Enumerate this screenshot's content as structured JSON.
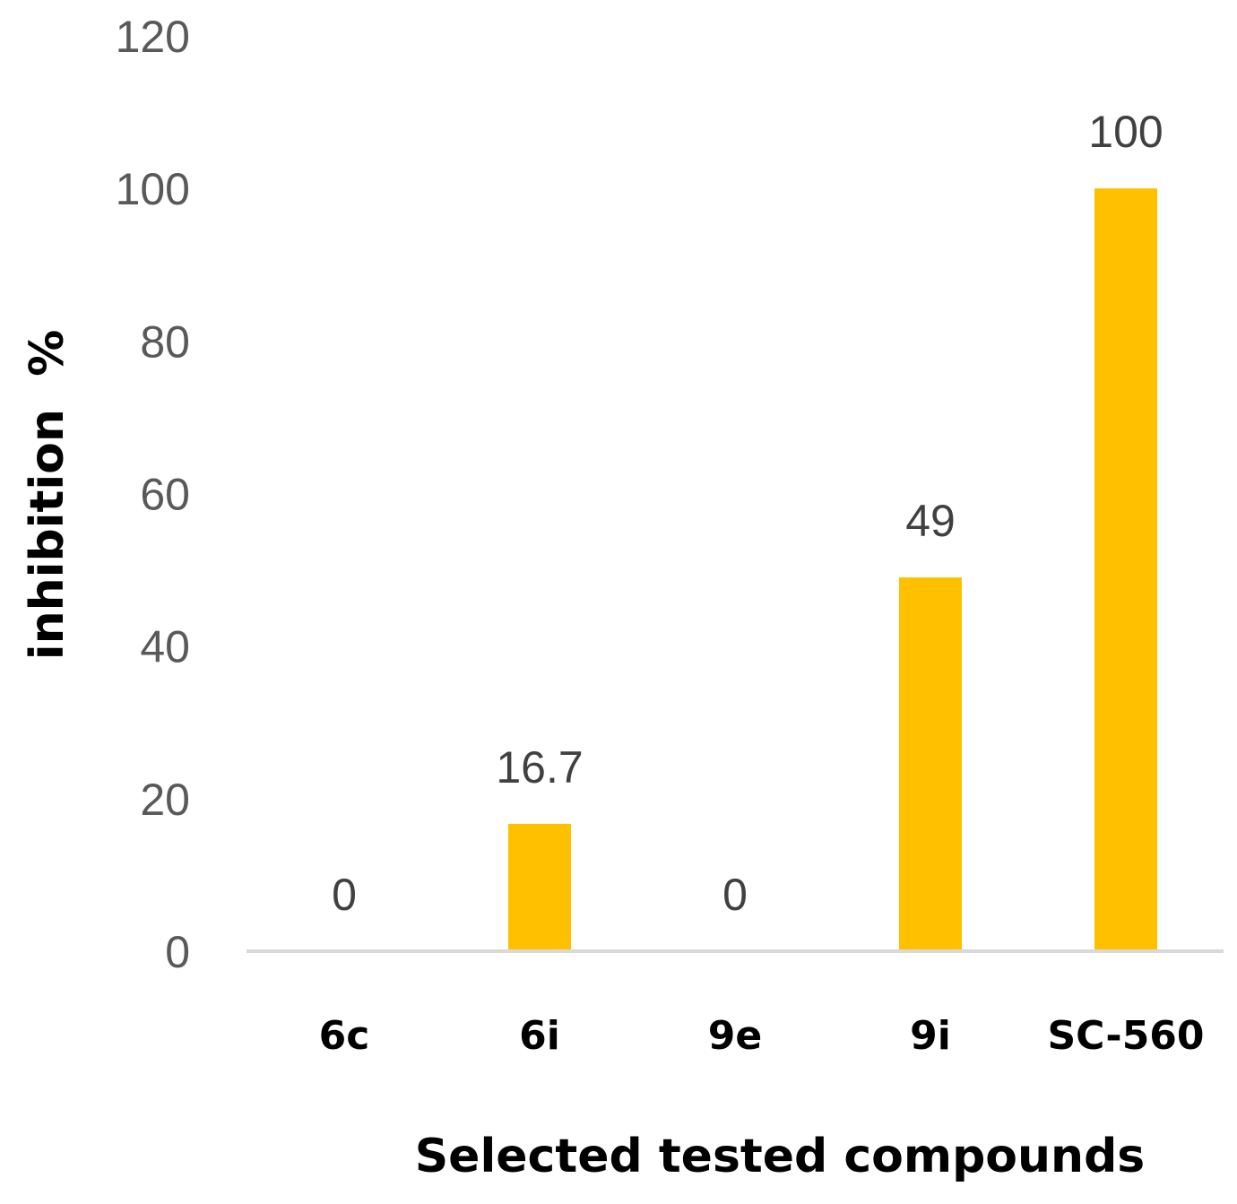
{
  "chart_data": {
    "type": "bar",
    "categories": [
      "6c",
      "6i",
      "9e",
      "9i",
      "SC-560"
    ],
    "values": [
      0,
      16.7,
      0,
      49,
      100
    ],
    "data_labels": [
      "0",
      "16.7",
      "0",
      "49",
      "100"
    ],
    "title": "",
    "xlabel": "Selected tested compounds",
    "ylabel": "inhibition  %",
    "ylim": [
      0,
      120
    ],
    "yticks": [
      0,
      20,
      40,
      60,
      80,
      100,
      120
    ],
    "ytick_labels": [
      "0",
      "20",
      "40",
      "60",
      "80",
      "100",
      "120"
    ],
    "grid": false,
    "legend": "none",
    "colors": {
      "bar": "#FFC000",
      "axis_line": "#D9D9D9"
    }
  }
}
